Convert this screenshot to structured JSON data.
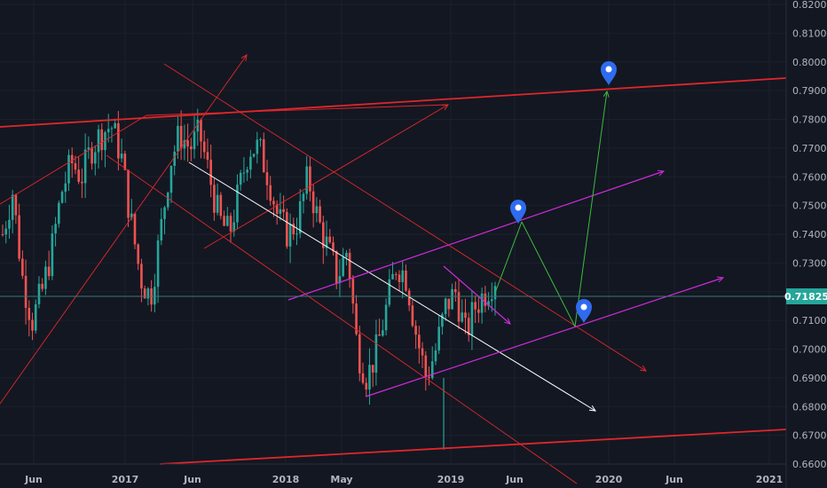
{
  "chart_data": {
    "type": "candlestick",
    "y_axis": {
      "range": [
        0.66,
        0.82
      ],
      "ticks": [
        "0.82000",
        "0.81000",
        "0.80000",
        "0.79000",
        "0.78000",
        "0.77000",
        "0.76000",
        "0.75000",
        "0.74000",
        "0.73000",
        "0.72000",
        "0.71000",
        "0.70000",
        "0.69000",
        "0.68000",
        "0.67000",
        "0.66000"
      ]
    },
    "x_axis": {
      "ticks": [
        "Jun",
        "2017",
        "Jun",
        "2018",
        "May",
        "2019",
        "Jun",
        "2020",
        "Jun",
        "2021"
      ]
    },
    "current_price": "0.71825",
    "colors": {
      "up": "#26a69a",
      "down": "#ef5350",
      "red_line": "#e0272b",
      "magenta": "#cf2bd9",
      "green": "#3dbb3d",
      "white": "#ffffff",
      "marker": "#2f6bf0",
      "price_badge": "#26a69a",
      "horizontal": "#3a7a74"
    },
    "approx_ohlc_path": [
      0.74,
      0.755,
      0.725,
      0.71,
      0.72,
      0.735,
      0.755,
      0.765,
      0.76,
      0.77,
      0.775,
      0.778,
      0.768,
      0.745,
      0.725,
      0.718,
      0.74,
      0.765,
      0.775,
      0.77,
      0.775,
      0.76,
      0.745,
      0.74,
      0.755,
      0.77,
      0.77,
      0.76,
      0.745,
      0.74,
      0.745,
      0.76,
      0.745,
      0.735,
      0.725,
      0.735,
      0.7,
      0.69,
      0.7,
      0.715,
      0.73,
      0.725,
      0.705,
      0.69,
      0.7,
      0.715,
      0.72,
      0.705,
      0.715,
      0.72,
      0.725
    ]
  }
}
